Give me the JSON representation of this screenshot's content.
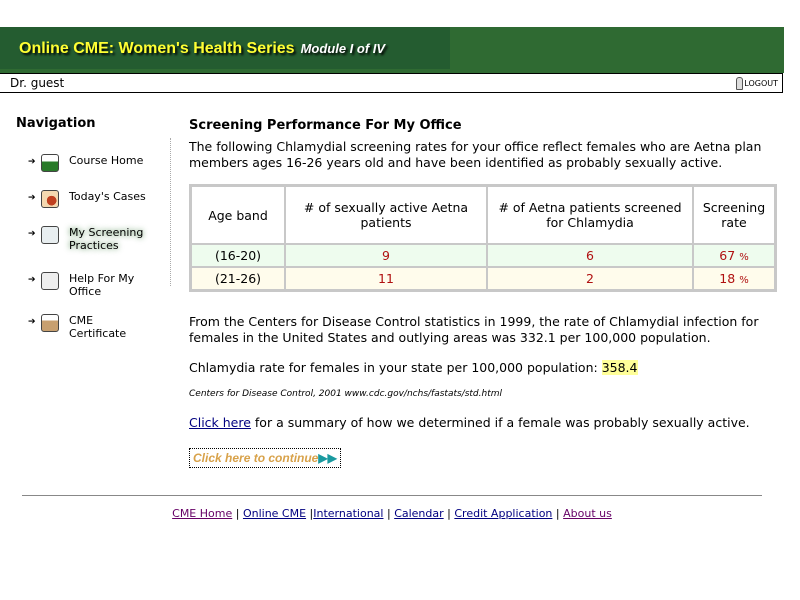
{
  "header": {
    "title": "Online CME: Women's Health Series",
    "module": "Module I of IV",
    "bg_color": "#2f6a32",
    "title_color": "#ffff33"
  },
  "userbar": {
    "user": "Dr. guest",
    "logout": "LOGOUT",
    "logout_icon": "key-icon"
  },
  "nav": {
    "title": "Navigation",
    "items": [
      {
        "label": "Course Home",
        "icon": "course-home-icon",
        "color": "#2a7a2a"
      },
      {
        "label": "Today's Cases",
        "icon": "cases-icon",
        "color": "#c04020"
      },
      {
        "label": "My Screening Practices",
        "icon": "screening-icon",
        "color": "#6a8aa0",
        "active": true
      },
      {
        "label": "Help For My Office",
        "icon": "help-icon",
        "color": "#777"
      },
      {
        "label": "CME Certificate",
        "icon": "certificate-icon",
        "color": "#b08a5a"
      }
    ]
  },
  "main": {
    "title": "Screening Performance For My Office",
    "intro": "The following Chlamydial screening rates for your office reflect females who are Aetna plan members ages 16-26 years old and have been identified as probably sexually active.",
    "table": {
      "headers": [
        "Age band",
        "# of sexually active Aetna patients",
        "# of Aetna patients screened for Chlamydia",
        "Screening rate"
      ],
      "rows": [
        {
          "age": "(16-20)",
          "active": "9",
          "screened": "6",
          "rate": "67",
          "unit": "%"
        },
        {
          "age": "(21-26)",
          "active": "11",
          "screened": "2",
          "rate": "18",
          "unit": "%"
        }
      ]
    },
    "cdc": "From the Centers for Disease Control statistics in 1999, the rate of Chlamydial infection for females in the United States and outlying areas was 332.1 per 100,000 population.",
    "state_label": "Chlamydia rate for females in your state per 100,000 population:",
    "state_value": "358.4",
    "citation": "Centers for Disease Control, 2001 www.cdc.gov/nchs/fastats/std.html",
    "summary_link": "Click here",
    "summary_text": " for a summary of how we determined if a female was probably sexually active.",
    "continue": "Click here to continue"
  },
  "footer": {
    "links": [
      "CME Home",
      "Online CME",
      "International",
      "Calendar",
      "Credit Application",
      "About us"
    ]
  }
}
